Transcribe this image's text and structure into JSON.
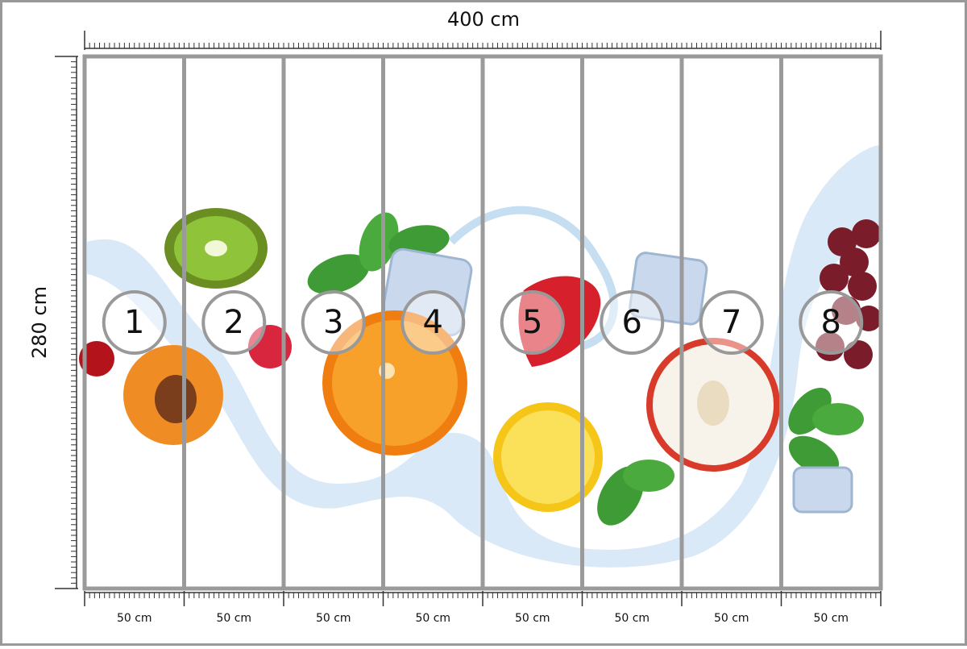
{
  "dimensions": {
    "width": "400 cm",
    "height": "280 cm"
  },
  "panels": [
    {
      "number": "1",
      "width": "50 cm"
    },
    {
      "number": "2",
      "width": "50 cm"
    },
    {
      "number": "3",
      "width": "50 cm"
    },
    {
      "number": "4",
      "width": "50 cm"
    },
    {
      "number": "5",
      "width": "50 cm"
    },
    {
      "number": "6",
      "width": "50 cm"
    },
    {
      "number": "7",
      "width": "50 cm"
    },
    {
      "number": "8",
      "width": "50 cm"
    }
  ]
}
